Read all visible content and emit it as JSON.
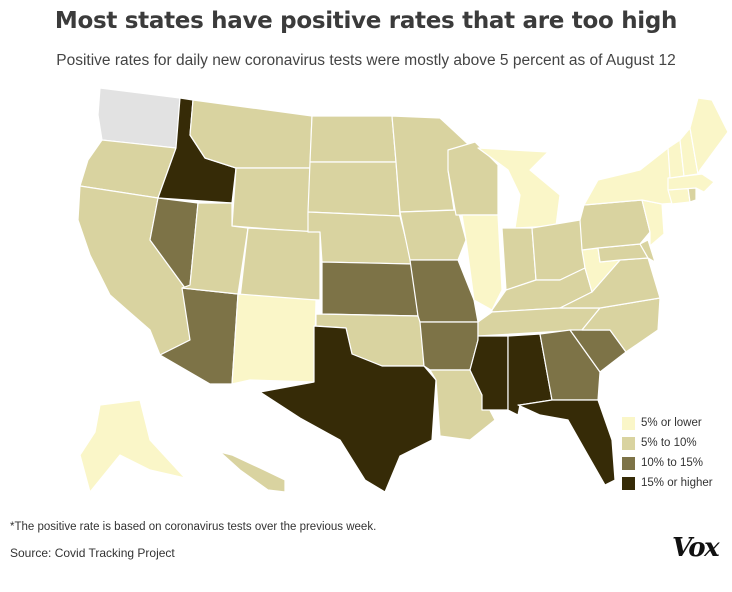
{
  "title": "Most states have positive rates that are too high",
  "subtitle": "Positive rates for daily new coronavirus tests were mostly above 5 percent as of August 12",
  "legend": [
    {
      "label": "5% or lower",
      "color": "#faf6c8"
    },
    {
      "label": "5% to 10%",
      "color": "#d9d3a0"
    },
    {
      "label": "10% to 15%",
      "color": "#7d7347"
    },
    {
      "label": "15% or higher",
      "color": "#362b07"
    }
  ],
  "no_data_color": "#e2e2e2",
  "footnote": "*The positive rate is based on coronavirus tests over the previous week.",
  "source": "Source: Covid Tracking Project",
  "logo": "Vox",
  "states": {
    "WA": "none",
    "OR": "5-10",
    "CA": "5-10",
    "ID": "15+",
    "NV": "10-15",
    "AZ": "10-15",
    "MT": "5-10",
    "WY": "5-10",
    "UT": "5-10",
    "CO": "5-10",
    "NM": "0-5",
    "ND": "5-10",
    "SD": "5-10",
    "NE": "5-10",
    "KS": "10-15",
    "OK": "5-10",
    "TX": "15+",
    "MN": "5-10",
    "IA": "5-10",
    "MO": "10-15",
    "AR": "10-15",
    "LA": "5-10",
    "WI": "5-10",
    "IL": "0-5",
    "MI": "0-5",
    "IN": "5-10",
    "OH": "5-10",
    "KY": "5-10",
    "TN": "5-10",
    "MS": "15+",
    "AL": "15+",
    "GA": "10-15",
    "FL": "15+",
    "SC": "10-15",
    "NC": "5-10",
    "VA": "5-10",
    "WV": "0-5",
    "MD": "5-10",
    "DE": "5-10",
    "PA": "5-10",
    "NJ": "0-5",
    "NY": "0-5",
    "CT": "0-5",
    "RI": "5-10",
    "MA": "0-5",
    "VT": "0-5",
    "NH": "0-5",
    "ME": "0-5",
    "AK": "0-5",
    "HI": "5-10"
  }
}
